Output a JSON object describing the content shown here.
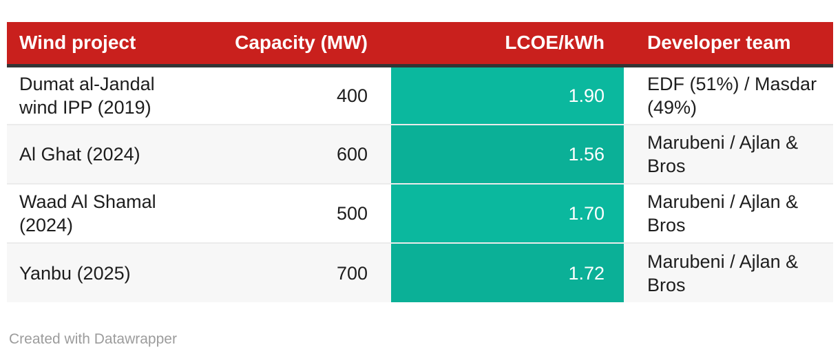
{
  "chart_data": {
    "type": "table",
    "columns": [
      {
        "label": "Wind project",
        "align": "left"
      },
      {
        "label": "Capacity (MW)",
        "align": "right"
      },
      {
        "label": "LCOE/kWh",
        "align": "right",
        "heatmap": true
      },
      {
        "label": "Developer team",
        "align": "left"
      }
    ],
    "rows": [
      {
        "project": "Dumat al-Jandal wind IPP (2019)",
        "capacity": "400",
        "lcoe": "1.90",
        "developer": "EDF (51%) / Masdar (49%)"
      },
      {
        "project": "Al Ghat (2024)",
        "capacity": "600",
        "lcoe": "1.56",
        "developer": "Marubeni / Ajlan & Bros"
      },
      {
        "project": "Waad Al Shamal (2024)",
        "capacity": "500",
        "lcoe": "1.70",
        "developer": "Marubeni / Ajlan & Bros"
      },
      {
        "project": "Yanbu (2025)",
        "capacity": "700",
        "lcoe": "1.72",
        "developer": "Marubeni / Ajlan & Bros"
      }
    ],
    "capacity_values_mw": [
      400,
      600,
      500,
      700
    ],
    "lcoe_values": [
      1.9,
      1.56,
      1.7,
      1.72
    ],
    "heatmap_column": "LCOE/kWh",
    "legend_position": "none",
    "grid": "zebra-rows"
  },
  "colors": {
    "header_bg": "#c9201d",
    "header_text": "#ffffff",
    "heat_cell": "#0bb89e",
    "heat_text": "#ffffff",
    "zebra_row": "#f7f7f7",
    "body_text": "#1d1d1d",
    "header_border": "#343434",
    "credit_text": "#9c9c9c",
    "page_bg": "#ffffff"
  },
  "footer": {
    "credit": "Created with Datawrapper"
  }
}
